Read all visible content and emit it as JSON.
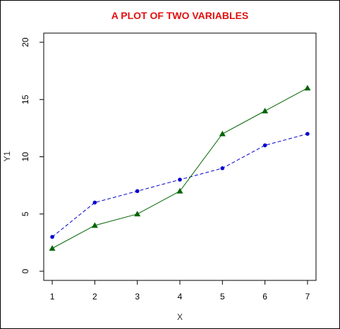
{
  "chart_data": {
    "type": "line",
    "title": "A PLOT OF TWO VARIABLES",
    "xlabel": "X",
    "ylabel": "Y1",
    "x": [
      1,
      2,
      3,
      4,
      5,
      6,
      7
    ],
    "xlim": [
      0.8,
      7.2
    ],
    "ylim": [
      -0.8,
      20.8
    ],
    "x_ticks": [
      1,
      2,
      3,
      4,
      5,
      6,
      7
    ],
    "y_ticks": [
      0,
      5,
      10,
      15,
      20
    ],
    "grid": false,
    "series": [
      {
        "values": [
          3,
          6,
          7,
          8,
          9,
          11,
          12
        ],
        "color": "#0000cc",
        "line_style": "dashed",
        "marker": "circle"
      },
      {
        "values": [
          2,
          4,
          5,
          7,
          12,
          14,
          16
        ],
        "color": "#006400",
        "line_style": "solid",
        "marker": "triangle"
      }
    ]
  },
  "colors": {
    "title": "#e01010",
    "axis": "#000000"
  }
}
